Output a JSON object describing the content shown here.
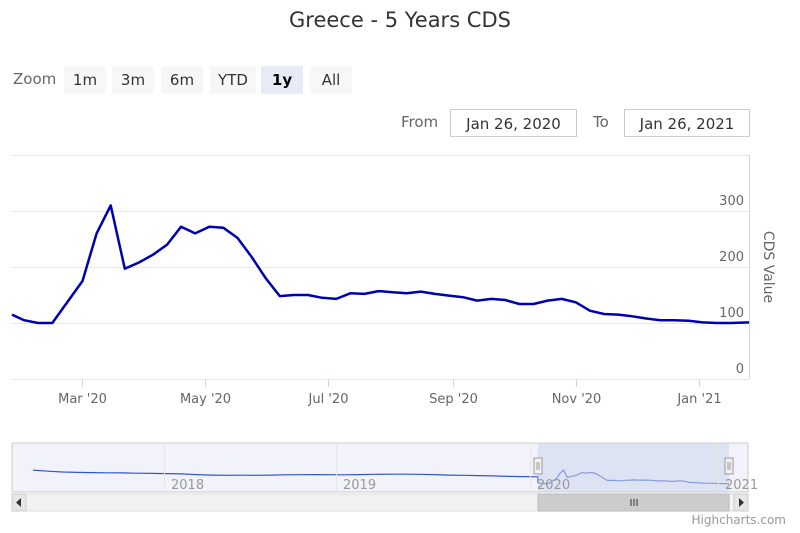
{
  "header": {
    "title": "Greece - 5 Years CDS"
  },
  "range_selector": {
    "zoom_label": "Zoom",
    "buttons": [
      {
        "label": "1m",
        "active": false
      },
      {
        "label": "3m",
        "active": false
      },
      {
        "label": "6m",
        "active": false
      },
      {
        "label": "YTD",
        "active": false
      },
      {
        "label": "1y",
        "active": true
      },
      {
        "label": "All",
        "active": false
      }
    ],
    "from_label": "From",
    "from_value": "Jan 26, 2020",
    "to_label": "To",
    "to_value": "Jan 26, 2021"
  },
  "credits": "Highcharts.com",
  "colors": {
    "series": "#0000b3",
    "navigator_mask": "#ccd6eb",
    "navigator_line": "#3355cc"
  },
  "chart_data": {
    "type": "line",
    "title": "Greece - 5 Years CDS",
    "ylabel": "CDS Value",
    "ylim": [
      0,
      400
    ],
    "yticks": [
      0,
      100,
      200,
      300
    ],
    "xlim": [
      "2020-01-26",
      "2021-01-26"
    ],
    "xticks": [
      {
        "date": "2020-03-01",
        "label": "Mar '20"
      },
      {
        "date": "2020-05-01",
        "label": "May '20"
      },
      {
        "date": "2020-07-01",
        "label": "Jul '20"
      },
      {
        "date": "2020-09-01",
        "label": "Sep '20"
      },
      {
        "date": "2020-11-01",
        "label": "Nov '20"
      },
      {
        "date": "2021-01-01",
        "label": "Jan '21"
      }
    ],
    "grid": true,
    "series": [
      {
        "name": "",
        "x": [
          "2020-01-26",
          "2020-02-01",
          "2020-02-08",
          "2020-02-15",
          "2020-02-22",
          "2020-03-01",
          "2020-03-08",
          "2020-03-15",
          "2020-03-22",
          "2020-03-29",
          "2020-04-05",
          "2020-04-12",
          "2020-04-19",
          "2020-04-26",
          "2020-05-03",
          "2020-05-10",
          "2020-05-17",
          "2020-05-24",
          "2020-05-31",
          "2020-06-07",
          "2020-06-14",
          "2020-06-21",
          "2020-06-28",
          "2020-07-05",
          "2020-07-12",
          "2020-07-19",
          "2020-07-26",
          "2020-08-02",
          "2020-08-09",
          "2020-08-16",
          "2020-08-23",
          "2020-08-30",
          "2020-09-06",
          "2020-09-13",
          "2020-09-20",
          "2020-09-27",
          "2020-10-04",
          "2020-10-11",
          "2020-10-18",
          "2020-10-25",
          "2020-11-01",
          "2020-11-08",
          "2020-11-15",
          "2020-11-22",
          "2020-11-29",
          "2020-12-06",
          "2020-12-13",
          "2020-12-20",
          "2020-12-27",
          "2021-01-03",
          "2021-01-10",
          "2021-01-17",
          "2021-01-26"
        ],
        "y": [
          115,
          105,
          100,
          100,
          135,
          175,
          260,
          310,
          197,
          208,
          222,
          240,
          272,
          260,
          272,
          270,
          252,
          218,
          180,
          148,
          150,
          150,
          145,
          143,
          153,
          152,
          157,
          155,
          153,
          156,
          152,
          149,
          146,
          140,
          143,
          141,
          134,
          134,
          140,
          143,
          137,
          122,
          116,
          115,
          112,
          108,
          105,
          105,
          104,
          101,
          100,
          100,
          101
        ]
      }
    ],
    "navigator": {
      "x_labels": [
        "2018",
        "2019",
        "2020",
        "2021"
      ],
      "selected_range": [
        "2020-01-26",
        "2021-01-26"
      ]
    }
  }
}
